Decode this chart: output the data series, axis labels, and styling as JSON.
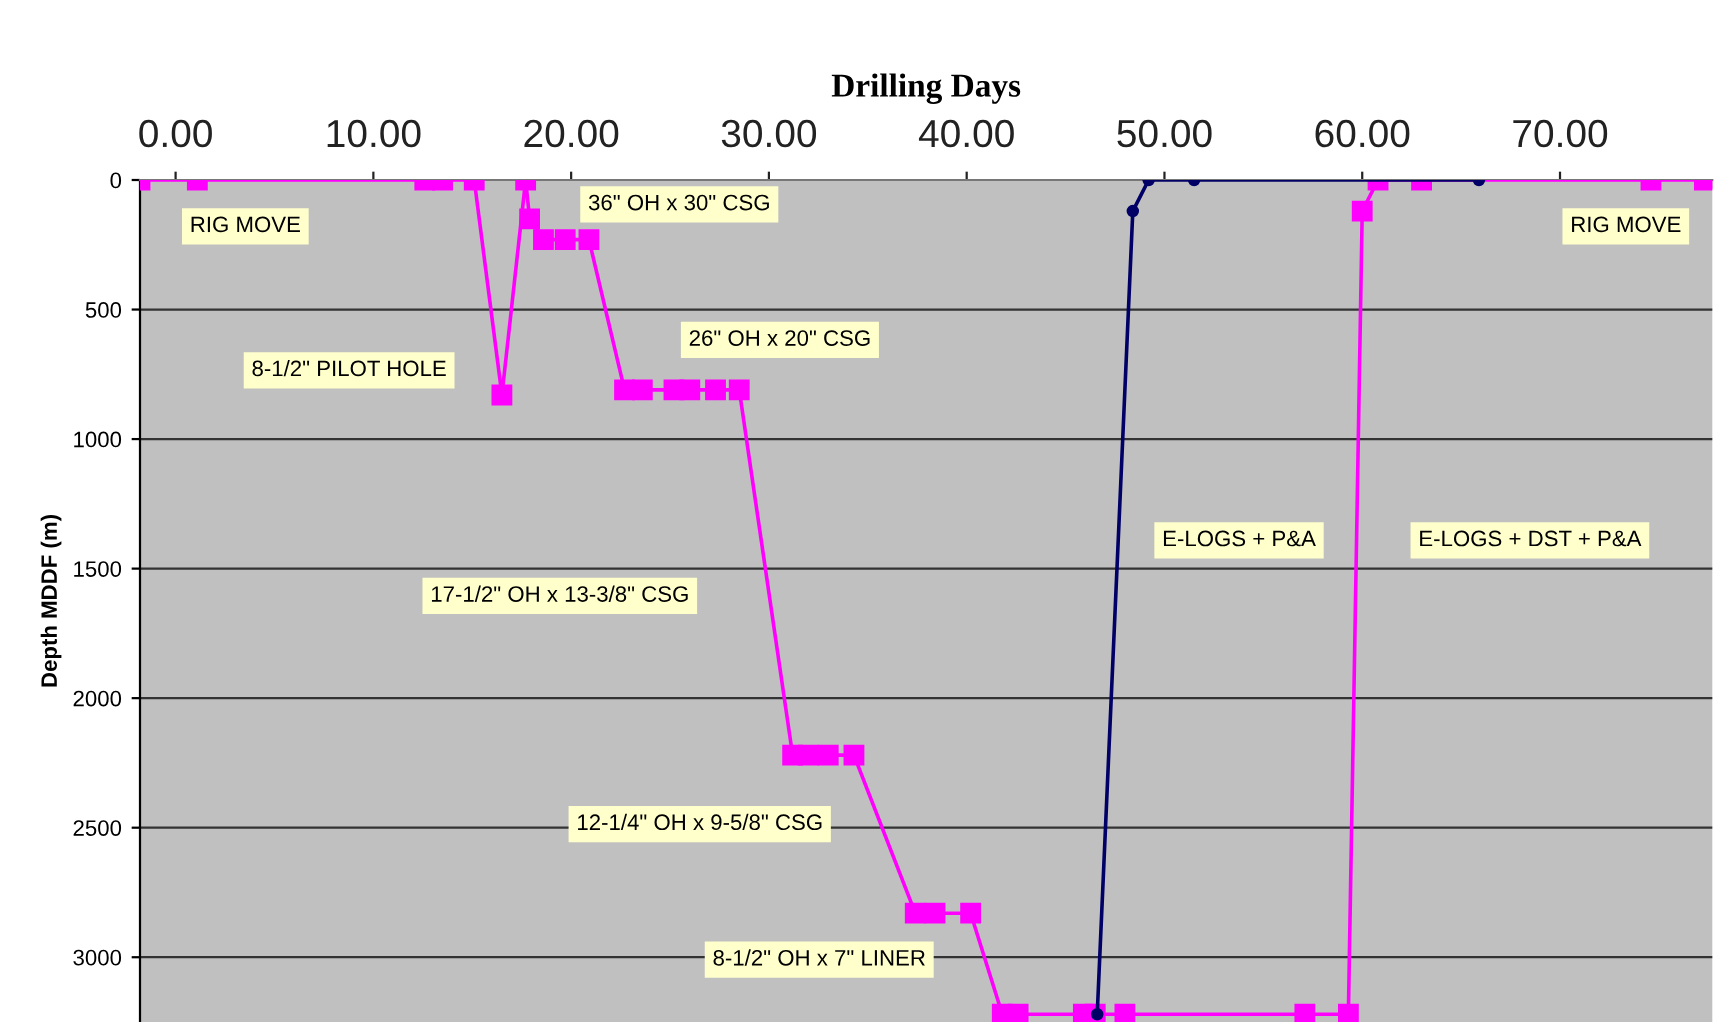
{
  "chart_data": {
    "type": "line",
    "xlabel": "Drilling Days",
    "ylabel": "Depth MDDF (m)",
    "xlim": [
      -1.8,
      77.7
    ],
    "xticks": [
      {
        "value": 0,
        "label": "0.00"
      },
      {
        "value": 10,
        "label": "10.00"
      },
      {
        "value": 20,
        "label": "20.00"
      },
      {
        "value": 30,
        "label": "30.00"
      },
      {
        "value": 40,
        "label": "40.00"
      },
      {
        "value": 50,
        "label": "50.00"
      },
      {
        "value": 60,
        "label": "60.00"
      },
      {
        "value": 70,
        "label": "70.00"
      }
    ],
    "ylim": [
      3250,
      0
    ],
    "yticks": [
      0,
      500,
      1000,
      1500,
      2000,
      2500,
      3000
    ],
    "grid": "y",
    "series": [
      {
        "color": "#ff00ff",
        "marker": "square",
        "x": [
          -1.8,
          1.1,
          12.6,
          13.5,
          15.1,
          16.5,
          17.7,
          17.9,
          18.6,
          19.7,
          20.9,
          22.7,
          23.6,
          25.2,
          26.0,
          27.3,
          28.5,
          31.2,
          32.0,
          33.0,
          34.3,
          37.4,
          38.4,
          40.2,
          41.8,
          42.6,
          45.9,
          46.5,
          48.0,
          57.1,
          59.3,
          60.0,
          60.8,
          63.0,
          74.6,
          77.3
        ],
        "values": [
          0,
          0,
          0,
          0,
          0,
          830,
          0,
          150,
          230,
          230,
          230,
          810,
          810,
          810,
          810,
          810,
          810,
          2220,
          2220,
          2220,
          2220,
          2830,
          2830,
          2830,
          3220,
          3220,
          3220,
          3220,
          3220,
          3220,
          3220,
          120,
          0,
          0,
          0,
          0
        ]
      },
      {
        "color": "#000066",
        "marker": "circle",
        "x": [
          46.6,
          48.4,
          49.2,
          51.5,
          65.9
        ],
        "values": [
          3220,
          120,
          0,
          0,
          0
        ]
      }
    ],
    "annotations": [
      "RIG MOVE",
      "36\" OH x 30\" CSG",
      "8-1/2\" PILOT HOLE",
      "26\" OH x 20\" CSG",
      "17-1/2\" OH x 13-3/8\" CSG",
      "12-1/4\" OH x 9-5/8\" CSG",
      "8-1/2\" OH x 7\" LINER",
      "E-LOGS + P&A",
      "E-LOGS + DST + P&A",
      "RIG MOVE"
    ]
  }
}
